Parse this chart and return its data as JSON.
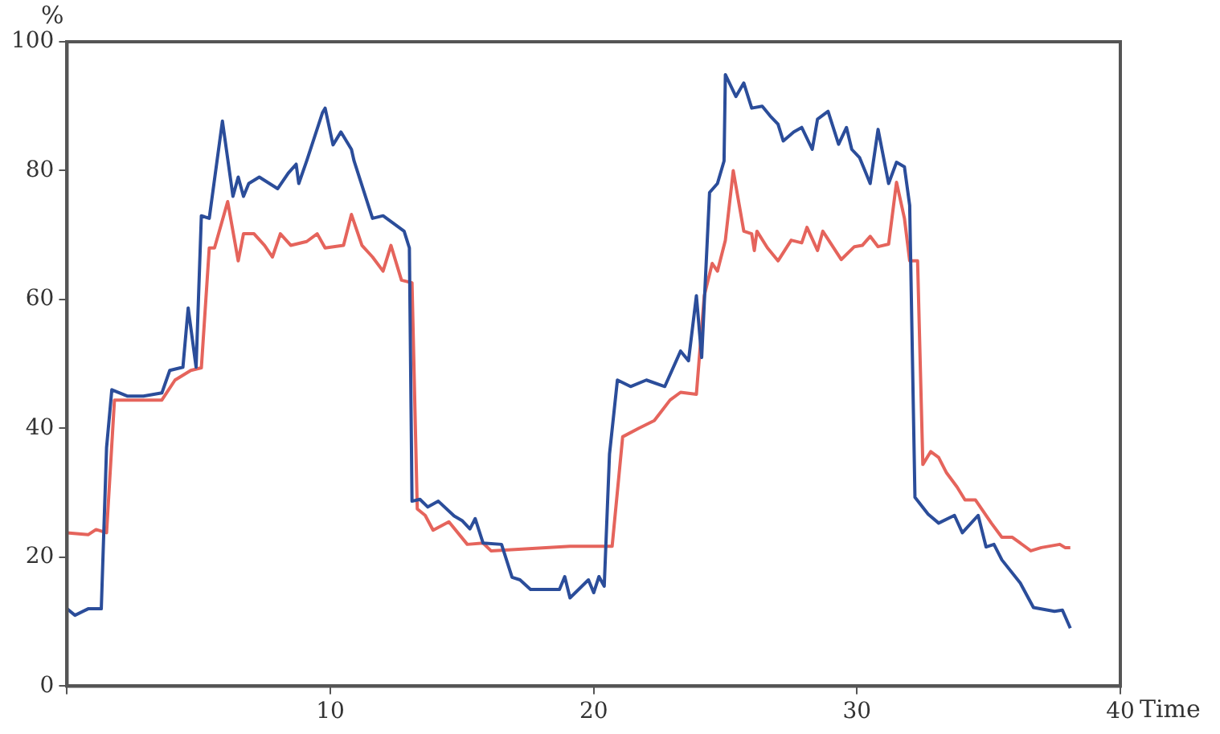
{
  "chart_data": {
    "type": "line",
    "xlabel": "Time",
    "ylabel": "%",
    "xlim": [
      0,
      40
    ],
    "xticks": [
      {
        "value": 0,
        "label": null
      },
      10,
      20,
      30,
      40
    ],
    "ylim": [
      0,
      100
    ],
    "yticks": [
      0,
      20,
      40,
      60,
      80,
      100
    ],
    "grid": false,
    "legend": false,
    "marker": "none",
    "line_style": "solid",
    "series": [
      {
        "color": "#2b4d9a",
        "x": [
          0,
          0.3,
          0.8,
          1.3,
          1.5,
          1.7,
          2.3,
          2.9,
          3.6,
          3.9,
          4.4,
          4.6,
          4.9,
          5.1,
          5.4,
          5.9,
          6.3,
          6.5,
          6.7,
          6.9,
          7.3,
          8.0,
          8.4,
          8.7,
          8.8,
          9.1,
          9.7,
          9.8,
          10.1,
          10.4,
          10.8,
          10.9,
          11.6,
          12.0,
          12.8,
          13.0,
          13.1,
          13.4,
          13.7,
          14.1,
          14.7,
          15.0,
          15.3,
          15.5,
          15.8,
          16.5,
          16.9,
          17.2,
          17.6,
          18.7,
          18.9,
          19.1,
          19.8,
          20.0,
          20.2,
          20.4,
          20.6,
          20.9,
          21.4,
          22.0,
          22.7,
          23.3,
          23.6,
          23.9,
          24.1,
          24.4,
          24.7,
          24.95,
          25.0,
          25.4,
          25.7,
          26.0,
          26.4,
          26.7,
          27.0,
          27.2,
          27.6,
          27.9,
          28.3,
          28.5,
          28.9,
          29.3,
          29.6,
          29.8,
          30.1,
          30.5,
          30.8,
          31.2,
          31.5,
          31.8,
          32.0,
          32.2,
          32.7,
          33.1,
          33.7,
          34.0,
          34.6,
          34.9,
          35.2,
          35.5,
          36.2,
          36.7,
          37.5,
          37.8,
          38.1
        ],
        "values": [
          12,
          11,
          12,
          12,
          37,
          46,
          45,
          45,
          45.5,
          49,
          49.5,
          58.7,
          49.5,
          73,
          72.6,
          87.7,
          76,
          79,
          76,
          78,
          79,
          77.2,
          79.6,
          81,
          78,
          81.5,
          89,
          89.7,
          84,
          86,
          83.3,
          81.5,
          72.6,
          73,
          70.6,
          68,
          28.7,
          29,
          27.8,
          28.7,
          26.4,
          25.7,
          24.4,
          26,
          22.2,
          22,
          16.9,
          16.5,
          15,
          15,
          17,
          13.7,
          16.5,
          14.5,
          17,
          15.5,
          36,
          47.5,
          46.5,
          47.5,
          46.5,
          52,
          50.5,
          60.6,
          51,
          76.6,
          78,
          81.5,
          94.9,
          91.5,
          93.6,
          89.7,
          90,
          88.5,
          87.2,
          84.6,
          86,
          86.7,
          83.3,
          88,
          89.2,
          84.1,
          86.7,
          83.3,
          82,
          78,
          86.4,
          78,
          81.3,
          80.6,
          74.6,
          29.3,
          26.7,
          25.3,
          26.5,
          23.8,
          26.5,
          21.6,
          22,
          19.6,
          16,
          12.2,
          11.6,
          11.8,
          9
        ]
      },
      {
        "color": "#e5645c",
        "x": [
          0,
          0.8,
          1.1,
          1.5,
          1.8,
          2.3,
          3.6,
          4.1,
          4.7,
          5.1,
          5.4,
          5.6,
          6.1,
          6.5,
          6.7,
          7.1,
          7.5,
          7.8,
          8.1,
          8.5,
          9.1,
          9.5,
          9.8,
          10.5,
          10.8,
          11.2,
          11.6,
          12.0,
          12.3,
          12.7,
          13.1,
          13.3,
          13.6,
          13.9,
          14.5,
          15.2,
          15.8,
          16.1,
          19.1,
          20.7,
          21.1,
          21.7,
          22.3,
          22.9,
          23.3,
          23.9,
          24.2,
          24.5,
          24.7,
          25.0,
          25.3,
          25.7,
          26.0,
          26.1,
          26.2,
          26.6,
          27.0,
          27.5,
          27.9,
          28.1,
          28.5,
          28.7,
          29.4,
          29.9,
          30.2,
          30.5,
          30.8,
          31.2,
          31.5,
          31.8,
          32.0,
          32.3,
          32.5,
          32.8,
          33.1,
          33.4,
          33.8,
          34.1,
          34.5,
          35.1,
          35.5,
          35.9,
          36.6,
          37.0,
          37.7,
          37.9,
          38.1
        ],
        "values": [
          23.8,
          23.5,
          24.3,
          23.8,
          44.4,
          44.4,
          44.4,
          47.5,
          49,
          49.4,
          68,
          68,
          75.2,
          66,
          70.2,
          70.2,
          68.4,
          66.6,
          70.2,
          68.4,
          69,
          70.2,
          68,
          68.4,
          73.2,
          68.4,
          66.6,
          64.4,
          68.4,
          63,
          62.6,
          27.5,
          26.5,
          24.2,
          25.5,
          22,
          22.2,
          21,
          21.7,
          21.7,
          38.7,
          40,
          41.2,
          44.4,
          45.6,
          45.3,
          60.6,
          65.6,
          64.4,
          69.2,
          80,
          70.6,
          70.2,
          67.6,
          70.6,
          68,
          66,
          69.2,
          68.8,
          71.2,
          67.6,
          70.6,
          66.2,
          68.2,
          68.4,
          69.8,
          68.2,
          68.6,
          78.2,
          72.6,
          66,
          66,
          34.4,
          36.4,
          35.5,
          33.1,
          30.9,
          28.9,
          28.9,
          25.3,
          23.1,
          23.1,
          21,
          21.5,
          22,
          21.5,
          21.5
        ]
      }
    ]
  }
}
